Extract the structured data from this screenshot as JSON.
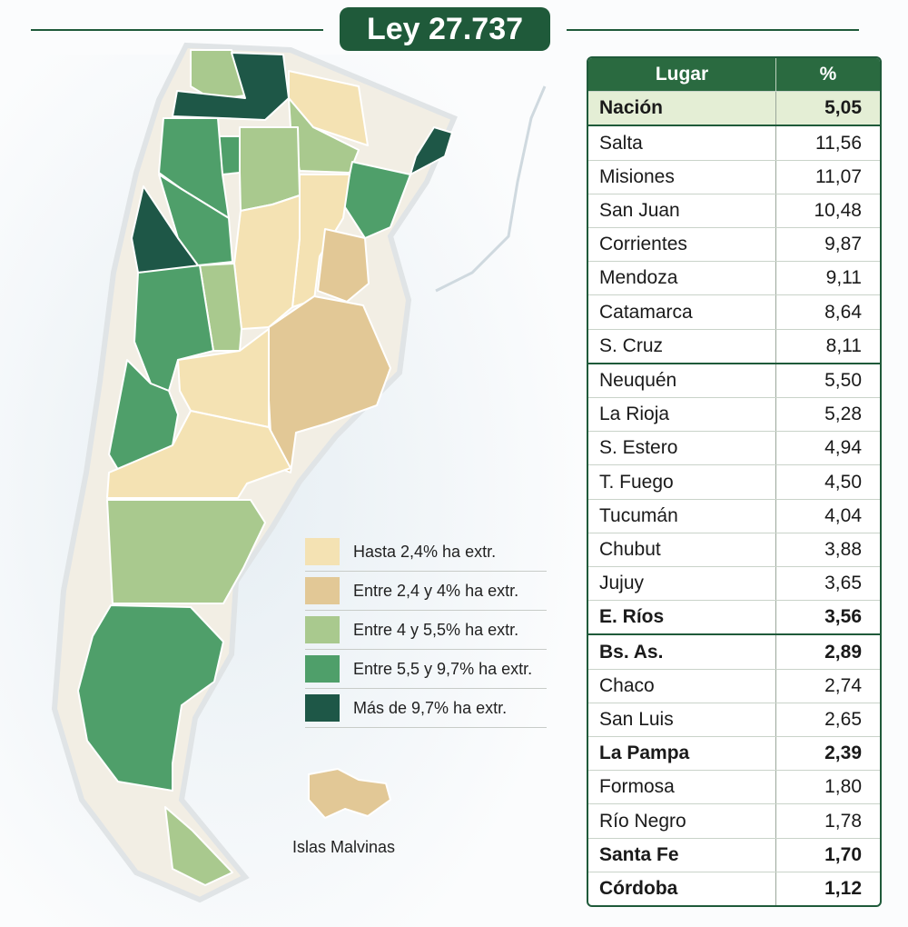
{
  "title": "Ley 27.737",
  "legend": {
    "items": [
      {
        "label": "Hasta 2,4% ha extr.",
        "color": "#f4e2b3"
      },
      {
        "label": "Entre 2,4 y 4% ha extr.",
        "color": "#e2c896"
      },
      {
        "label": "Entre 4 y 5,5% ha extr.",
        "color": "#a9c98e"
      },
      {
        "label": "Entre 5,5 y 9,7% ha extr.",
        "color": "#4f9f6a"
      },
      {
        "label": "Más de 9,7% ha extr.",
        "color": "#1e5747"
      }
    ]
  },
  "map": {
    "label": "Islas Malvinas"
  },
  "table": {
    "header": [
      "Lugar",
      "%"
    ],
    "sections": [
      [
        {
          "place": "Nación",
          "value": "5,05",
          "bold": true
        }
      ],
      [
        {
          "place": "Salta",
          "value": "11,56"
        },
        {
          "place": "Misiones",
          "value": "11,07"
        },
        {
          "place": "San Juan",
          "value": "10,48"
        },
        {
          "place": "Corrientes",
          "value": "9,87"
        },
        {
          "place": "Mendoza",
          "value": "9,11"
        },
        {
          "place": "Catamarca",
          "value": "8,64"
        },
        {
          "place": "S. Cruz",
          "value": "8,11"
        }
      ],
      [
        {
          "place": "Neuquén",
          "value": "5,50"
        },
        {
          "place": "La Rioja",
          "value": "5,28"
        },
        {
          "place": "S. Estero",
          "value": "4,94"
        },
        {
          "place": "T. Fuego",
          "value": "4,50"
        },
        {
          "place": "Tucumán",
          "value": "4,04"
        },
        {
          "place": "Chubut",
          "value": "3,88"
        },
        {
          "place": "Jujuy",
          "value": "3,65"
        },
        {
          "place": "E. Ríos",
          "value": "3,56",
          "bold": true
        }
      ],
      [
        {
          "place": "Bs. As.",
          "value": "2,89",
          "bold": true
        },
        {
          "place": "Chaco",
          "value": "2,74"
        },
        {
          "place": "San Luis",
          "value": "2,65"
        },
        {
          "place": "La Pampa",
          "value": "2,39",
          "bold": true
        },
        {
          "place": "Formosa",
          "value": "1,80"
        },
        {
          "place": "Río Negro",
          "value": "1,78"
        },
        {
          "place": "Santa Fe",
          "value": "1,70",
          "bold": true
        },
        {
          "place": "Córdoba",
          "value": "1,12",
          "bold": true
        }
      ]
    ]
  }
}
